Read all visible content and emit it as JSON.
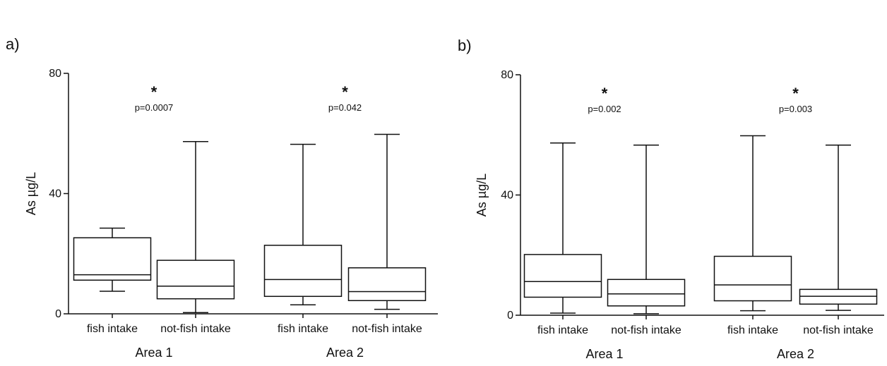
{
  "chart_data": [
    {
      "type": "boxplot",
      "panel_label": "a)",
      "ylabel": "As µg/L",
      "ylim": [
        0,
        80
      ],
      "yticks": [
        "0",
        "40",
        "80"
      ],
      "groups": [
        {
          "label": "Area 1",
          "significance": "*",
          "p_value": "p=0.0007",
          "boxes": [
            {
              "category": "fish intake",
              "min": 7.5,
              "q1": 11.2,
              "median": 13,
              "q3": 25.3,
              "max": 28.5
            },
            {
              "category": "not-fish intake",
              "min": 0.4,
              "q1": 5,
              "median": 9.2,
              "q3": 17.8,
              "max": 57.3
            }
          ]
        },
        {
          "label": "Area 2",
          "significance": "*",
          "p_value": "p=0.042",
          "boxes": [
            {
              "category": "fish intake",
              "min": 3,
              "q1": 5.8,
              "median": 11.4,
              "q3": 22.8,
              "max": 56.4
            },
            {
              "category": "not-fish intake",
              "min": 1.5,
              "q1": 4.4,
              "median": 7.4,
              "q3": 15.3,
              "max": 59.7
            }
          ]
        }
      ]
    },
    {
      "type": "boxplot",
      "panel_label": "b)",
      "ylabel": "As µg/L",
      "ylim": [
        0,
        80
      ],
      "yticks": [
        "0",
        "40",
        "80"
      ],
      "groups": [
        {
          "label": "Area 1",
          "significance": "*",
          "p_value": "p=0.002",
          "boxes": [
            {
              "category": "fish intake",
              "min": 0.7,
              "q1": 6,
              "median": 11.2,
              "q3": 20.2,
              "max": 57.3
            },
            {
              "category": "not-fish intake",
              "min": 0.5,
              "q1": 3.1,
              "median": 7.1,
              "q3": 11.9,
              "max": 56.6
            }
          ]
        },
        {
          "label": "Area 2",
          "significance": "*",
          "p_value": "p=0.003",
          "boxes": [
            {
              "category": "fish intake",
              "min": 1.5,
              "q1": 4.8,
              "median": 10.1,
              "q3": 19.6,
              "max": 59.7
            },
            {
              "category": "not-fish intake",
              "min": 1.6,
              "q1": 3.7,
              "median": 6.3,
              "q3": 8.6,
              "max": 56.6
            }
          ]
        }
      ]
    }
  ]
}
